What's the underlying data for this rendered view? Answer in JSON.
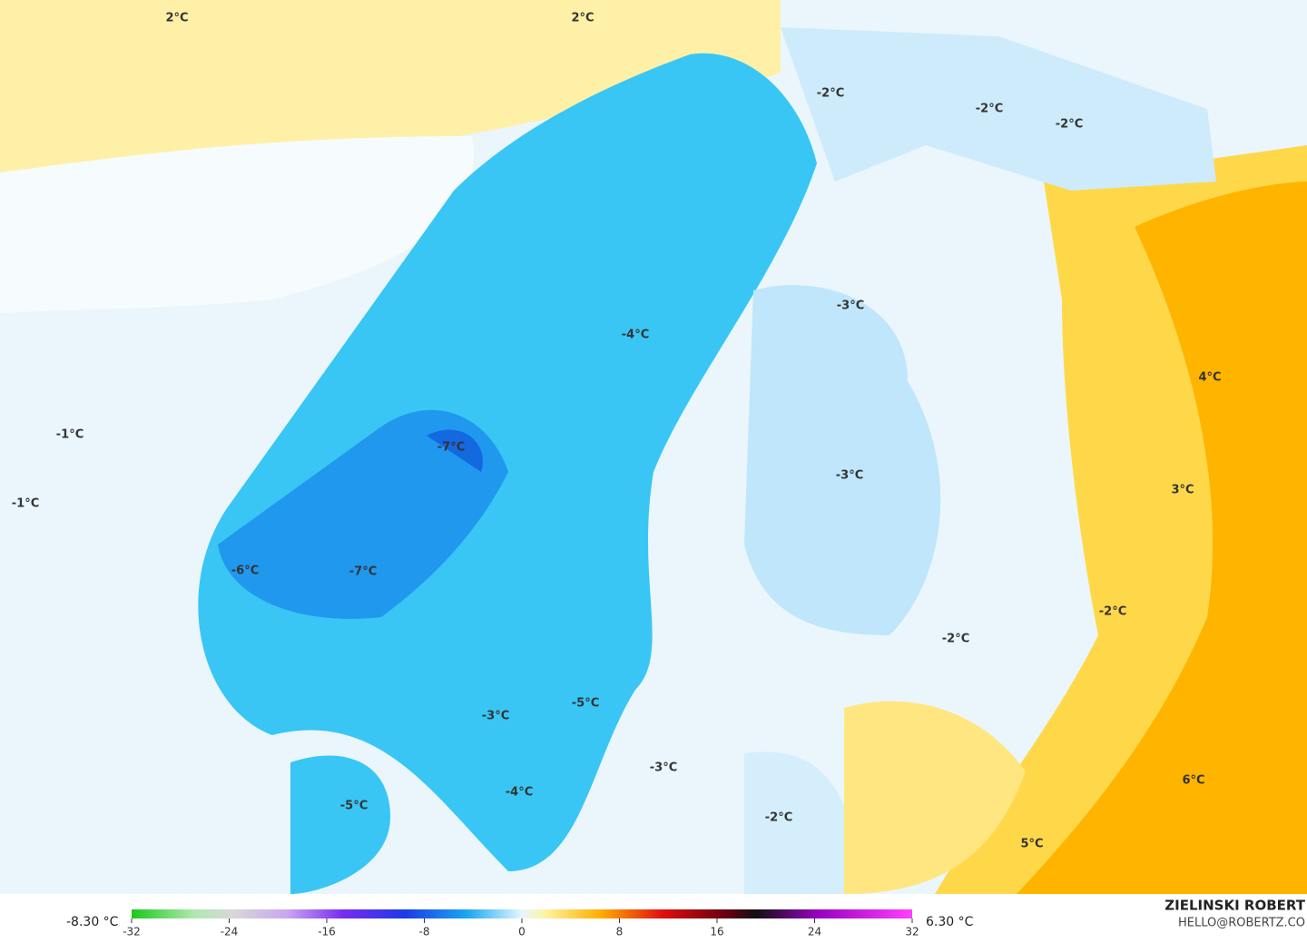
{
  "map": {
    "labels": [
      "2°C",
      "2°C",
      "-2°C",
      "-2°C",
      "-2°C",
      "-3°C",
      "-4°C",
      "4°C",
      "-1°C",
      "-7°C",
      "-3°C",
      "3°C",
      "-1°C",
      "-6°C",
      "-7°C",
      "-2°C",
      "-2°C",
      "-5°C",
      "-3°C",
      "-3°C",
      "-4°C",
      "-5°C",
      "6°C",
      "-2°C",
      "5°C"
    ]
  },
  "legend": {
    "min_label": "-8.30 °C",
    "max_label": "6.30 °C",
    "lim": [
      -32,
      32
    ],
    "ticks": [
      -32,
      -24,
      -16,
      -8,
      0,
      8,
      16,
      24,
      32
    ]
  },
  "credit": {
    "author": "ZIELINSKI ROBERT",
    "contact": "HELLO@ROBERTZ.CO"
  }
}
